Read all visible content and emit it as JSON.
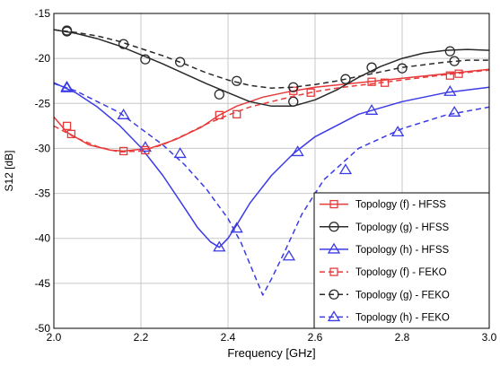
{
  "chart_data": {
    "type": "line",
    "title": "",
    "xlabel": "Frequency [GHz]",
    "ylabel": "S12 [dB]",
    "xlim": [
      2.0,
      3.0
    ],
    "ylim": [
      -50,
      -15
    ],
    "xticks": [
      "2.0",
      "2.2",
      "2.4",
      "2.6",
      "2.8",
      "3.0"
    ],
    "yticks": [
      "-15",
      "-20",
      "-25",
      "-30",
      "-35",
      "-40",
      "-45",
      "-50"
    ],
    "grid": true,
    "legend_position": "bottom-right",
    "series": [
      {
        "name": "Topology (f) - HFSS",
        "color": "#e83a3a",
        "line": "solid",
        "marker": "square",
        "x": [
          2.0,
          2.03,
          2.08,
          2.13,
          2.16,
          2.22,
          2.28,
          2.34,
          2.38,
          2.42,
          2.48,
          2.54,
          2.6,
          2.66,
          2.72,
          2.8,
          2.88,
          2.94,
          3.0
        ],
        "y": [
          -26.5,
          -28.2,
          -29.6,
          -30.2,
          -30.3,
          -30.0,
          -29.0,
          -27.6,
          -26.3,
          -25.3,
          -24.3,
          -23.7,
          -23.2,
          -22.9,
          -22.6,
          -22.2,
          -21.8,
          -21.5,
          -21.2
        ],
        "marker_x": [
          2.03,
          2.16,
          2.38,
          2.55,
          2.73,
          2.91
        ],
        "marker_y": [
          -27.5,
          -30.3,
          -26.3,
          -23.6,
          -22.6,
          -21.9
        ]
      },
      {
        "name": "Topology (g) - HFSS",
        "color": "#2a2a2a",
        "line": "solid",
        "marker": "circle",
        "x": [
          2.0,
          2.05,
          2.1,
          2.15,
          2.2,
          2.25,
          2.3,
          2.35,
          2.4,
          2.45,
          2.5,
          2.55,
          2.6,
          2.65,
          2.7,
          2.75,
          2.8,
          2.85,
          2.9,
          2.95,
          3.0
        ],
        "y": [
          -16.8,
          -17.2,
          -17.8,
          -18.6,
          -19.6,
          -20.6,
          -21.7,
          -22.8,
          -23.8,
          -24.8,
          -25.3,
          -25.3,
          -24.6,
          -23.5,
          -22.1,
          -20.9,
          -20.0,
          -19.4,
          -19.1,
          -19.0,
          -19.1
        ],
        "marker_x": [
          2.03,
          2.21,
          2.38,
          2.55,
          2.73,
          2.91
        ],
        "marker_y": [
          -17.0,
          -20.1,
          -24.0,
          -24.8,
          -21.0,
          -19.2
        ]
      },
      {
        "name": "Topology (h) - HFSS",
        "color": "#3b3be6",
        "line": "solid",
        "marker": "triangle",
        "x": [
          2.0,
          2.05,
          2.1,
          2.15,
          2.2,
          2.25,
          2.3,
          2.33,
          2.36,
          2.38,
          2.4,
          2.42,
          2.45,
          2.5,
          2.55,
          2.6,
          2.7,
          2.8,
          2.9,
          3.0
        ],
        "y": [
          -22.7,
          -23.8,
          -25.4,
          -27.4,
          -29.9,
          -33.0,
          -36.6,
          -38.8,
          -40.4,
          -41.0,
          -40.0,
          -38.5,
          -36.1,
          -33.0,
          -30.6,
          -28.7,
          -26.2,
          -24.8,
          -23.8,
          -23.2
        ],
        "marker_x": [
          2.03,
          2.21,
          2.38,
          2.56,
          2.73,
          2.91
        ],
        "marker_y": [
          -23.2,
          -29.9,
          -41.0,
          -30.4,
          -25.8,
          -23.7
        ]
      },
      {
        "name": "Topology (f) - FEKO",
        "color": "#e83a3a",
        "line": "dashed",
        "marker": "square",
        "x": [
          2.0,
          2.05,
          2.1,
          2.15,
          2.2,
          2.25,
          2.3,
          2.35,
          2.4,
          2.45,
          2.5,
          2.55,
          2.6,
          2.65,
          2.7,
          2.8,
          2.9,
          3.0
        ],
        "y": [
          -27.5,
          -28.8,
          -29.8,
          -30.4,
          -30.3,
          -29.6,
          -28.5,
          -27.3,
          -26.3,
          -25.4,
          -24.8,
          -24.2,
          -23.7,
          -23.3,
          -23.0,
          -22.4,
          -21.8,
          -21.3
        ],
        "marker_x": [
          2.04,
          2.21,
          2.42,
          2.59,
          2.76,
          2.93
        ],
        "marker_y": [
          -28.4,
          -30.2,
          -26.2,
          -23.8,
          -22.7,
          -21.7
        ]
      },
      {
        "name": "Topology (g) - FEKO",
        "color": "#2a2a2a",
        "line": "dashed",
        "marker": "circle",
        "x": [
          2.0,
          2.05,
          2.1,
          2.15,
          2.2,
          2.25,
          2.3,
          2.35,
          2.4,
          2.45,
          2.5,
          2.55,
          2.6,
          2.65,
          2.7,
          2.75,
          2.8,
          2.85,
          2.9,
          2.95,
          3.0
        ],
        "y": [
          -16.8,
          -17.1,
          -17.5,
          -18.1,
          -18.9,
          -19.7,
          -20.6,
          -21.6,
          -22.4,
          -23.0,
          -23.3,
          -23.2,
          -22.9,
          -22.5,
          -22.0,
          -21.5,
          -21.0,
          -20.7,
          -20.4,
          -20.2,
          -20.2
        ],
        "marker_x": [
          2.03,
          2.16,
          2.29,
          2.42,
          2.55,
          2.67,
          2.8,
          2.92
        ],
        "marker_y": [
          -16.9,
          -18.4,
          -20.4,
          -22.5,
          -23.2,
          -22.3,
          -21.1,
          -20.3
        ]
      },
      {
        "name": "Topology (h) - FEKO",
        "color": "#3b3be6",
        "line": "dashed",
        "marker": "triangle",
        "x": [
          2.0,
          2.05,
          2.1,
          2.15,
          2.2,
          2.25,
          2.3,
          2.35,
          2.4,
          2.43,
          2.46,
          2.48,
          2.5,
          2.53,
          2.57,
          2.62,
          2.7,
          2.8,
          2.9,
          3.0
        ],
        "y": [
          -22.8,
          -23.6,
          -24.8,
          -26.0,
          -27.8,
          -29.6,
          -31.8,
          -34.5,
          -37.8,
          -40.5,
          -44.0,
          -46.3,
          -44.5,
          -41.5,
          -37.3,
          -33.5,
          -30.0,
          -27.8,
          -26.3,
          -25.4
        ],
        "marker_x": [
          2.03,
          2.16,
          2.29,
          2.42,
          2.54,
          2.67,
          2.79,
          2.92
        ],
        "marker_y": [
          -23.3,
          -26.3,
          -30.6,
          -38.9,
          -42.0,
          -32.4,
          -28.2,
          -26.0
        ]
      }
    ]
  }
}
